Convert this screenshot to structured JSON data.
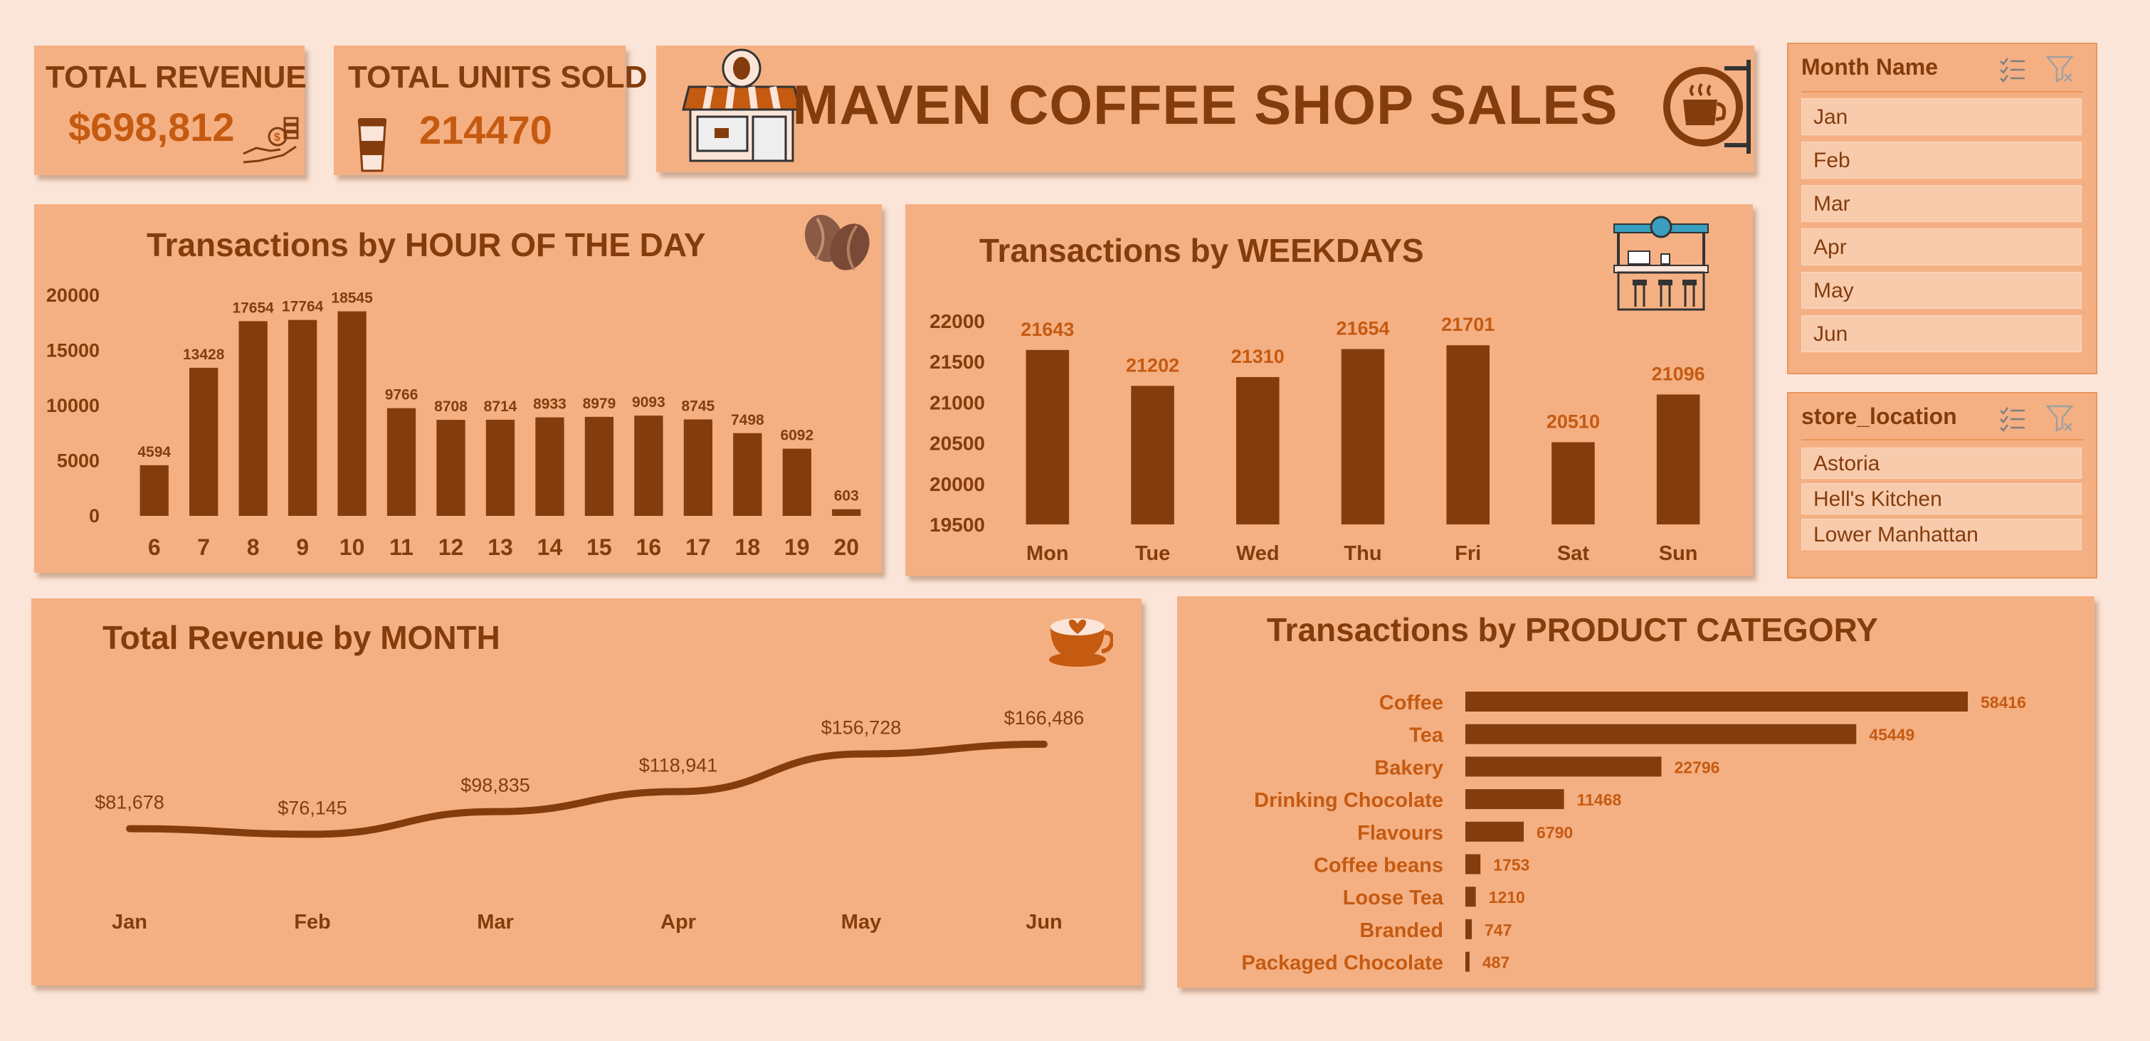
{
  "kpis": {
    "revenue_title": "TOTAL REVENUE",
    "revenue_value": "$698,812",
    "units_title": "TOTAL UNITS SOLD",
    "units_value": "214470"
  },
  "header": {
    "title": "MAVEN COFFEE SHOP SALES"
  },
  "colors": {
    "bar": "#843c0c",
    "panel": "#f4b083",
    "background": "#fbe5d8",
    "accent": "#c55a11"
  },
  "icons": [
    "money-hand-icon",
    "coffee-cup-icon",
    "coffee-shop-icon",
    "coffee-sign-icon",
    "coffee-beans-icon",
    "coffee-bar-icon",
    "latte-art-icon",
    "multi-select-icon",
    "clear-filter-icon"
  ],
  "slicers": {
    "month": {
      "title": "Month Name",
      "items": [
        "Jan",
        "Feb",
        "Mar",
        "Apr",
        "May",
        "Jun"
      ]
    },
    "location": {
      "title": "store_location",
      "items": [
        "Astoria",
        "Hell's Kitchen",
        "Lower Manhattan"
      ]
    }
  },
  "chart_data": [
    {
      "type": "bar",
      "title": "Transactions by HOUR OF THE DAY",
      "categories": [
        "6",
        "7",
        "8",
        "9",
        "10",
        "11",
        "12",
        "13",
        "14",
        "15",
        "16",
        "17",
        "18",
        "19",
        "20"
      ],
      "values": [
        4594,
        13428,
        17654,
        17764,
        18545,
        9766,
        8708,
        8714,
        8933,
        8979,
        9093,
        8745,
        7498,
        6092,
        603
      ],
      "yticks": [
        "0",
        "5000",
        "10000",
        "15000",
        "20000"
      ],
      "ylim": [
        0,
        20000
      ],
      "grid": false
    },
    {
      "type": "bar",
      "title": "Transactions by WEEKDAYS",
      "categories": [
        "Mon",
        "Tue",
        "Wed",
        "Thu",
        "Fri",
        "Sat",
        "Sun"
      ],
      "values": [
        21643,
        21202,
        21310,
        21654,
        21701,
        20510,
        21096
      ],
      "yticks": [
        "19500",
        "20000",
        "20500",
        "21000",
        "21500",
        "22000"
      ],
      "ylim": [
        19500,
        22000
      ],
      "grid": false
    },
    {
      "type": "line",
      "title": "Total Revenue by MONTH",
      "categories": [
        "Jan",
        "Feb",
        "Mar",
        "Apr",
        "May",
        "Jun"
      ],
      "values": [
        81678,
        76145,
        98835,
        118941,
        156728,
        166486
      ],
      "labels": [
        "$81,678",
        "$76,145",
        "$98,835",
        "$118,941",
        "$156,728",
        "$166,486"
      ],
      "grid": false
    },
    {
      "type": "bar",
      "orientation": "horizontal",
      "title": "Transactions by PRODUCT CATEGORY",
      "categories": [
        "Coffee",
        "Tea",
        "Bakery",
        "Drinking Chocolate",
        "Flavours",
        "Coffee beans",
        "Loose Tea",
        "Branded",
        "Packaged Chocolate"
      ],
      "values": [
        58416,
        45449,
        22796,
        11468,
        6790,
        1753,
        1210,
        747,
        487
      ],
      "grid": false
    }
  ]
}
